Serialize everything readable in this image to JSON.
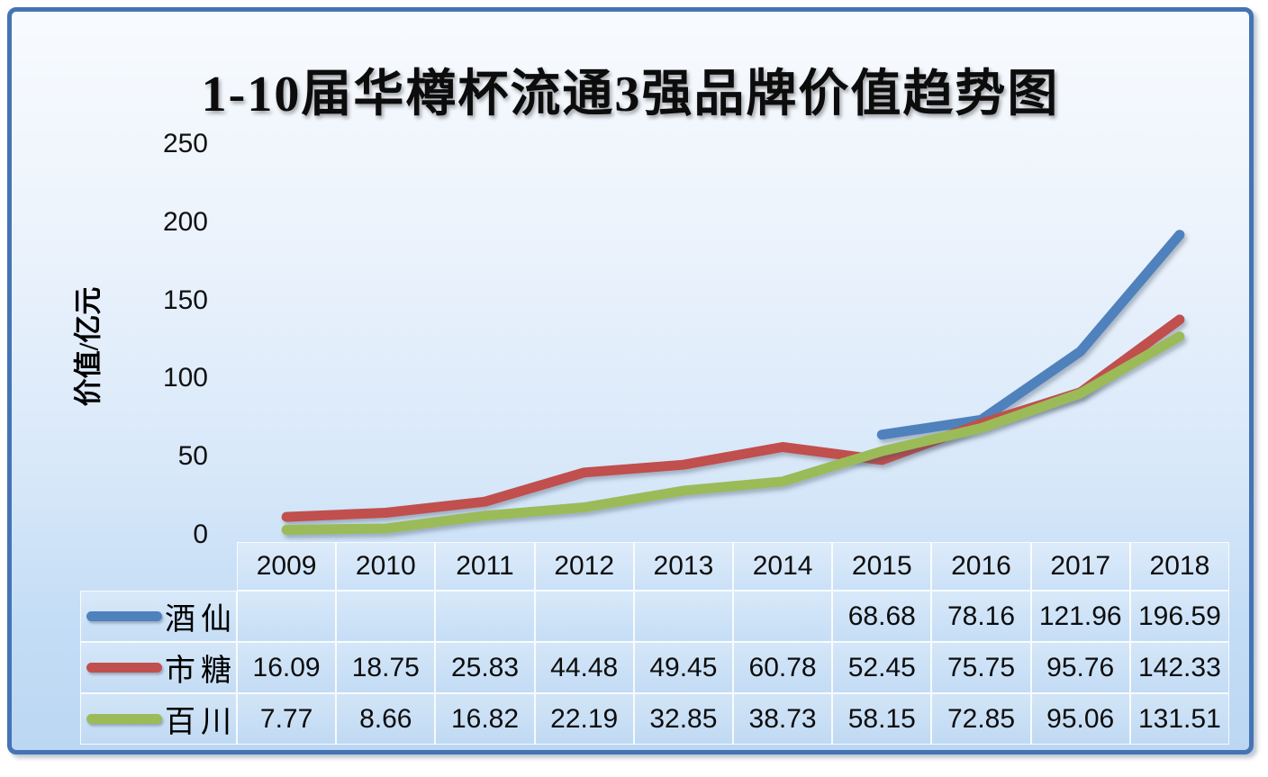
{
  "chart_data": {
    "type": "line",
    "title": "1-10届华樽杯流通3强品牌价值趋势图",
    "ylabel": "价值/亿元",
    "categories": [
      "2009",
      "2010",
      "2011",
      "2012",
      "2013",
      "2014",
      "2015",
      "2016",
      "2017",
      "2018"
    ],
    "series": [
      {
        "name": "酒仙",
        "color": "#4F81BD",
        "values": [
          null,
          null,
          null,
          null,
          null,
          null,
          68.68,
          78.16,
          121.96,
          196.59
        ]
      },
      {
        "name": "市糖",
        "color": "#C0504D",
        "values": [
          16.09,
          18.75,
          25.83,
          44.48,
          49.45,
          60.78,
          52.45,
          75.75,
          95.76,
          142.33
        ]
      },
      {
        "name": "百川",
        "color": "#9BBB59",
        "values": [
          7.77,
          8.66,
          16.82,
          22.19,
          32.85,
          38.73,
          58.15,
          72.85,
          95.06,
          131.51
        ]
      }
    ],
    "yticks": [
      0,
      50,
      100,
      150,
      200,
      250
    ],
    "ylim": [
      0,
      250
    ],
    "grid": false,
    "legend_position": "table-left",
    "data_table_shown": true
  },
  "frame": {
    "border_color": "#4574B4",
    "background_top": "#F8FBFE",
    "background_bottom": "#BCD7F2"
  }
}
